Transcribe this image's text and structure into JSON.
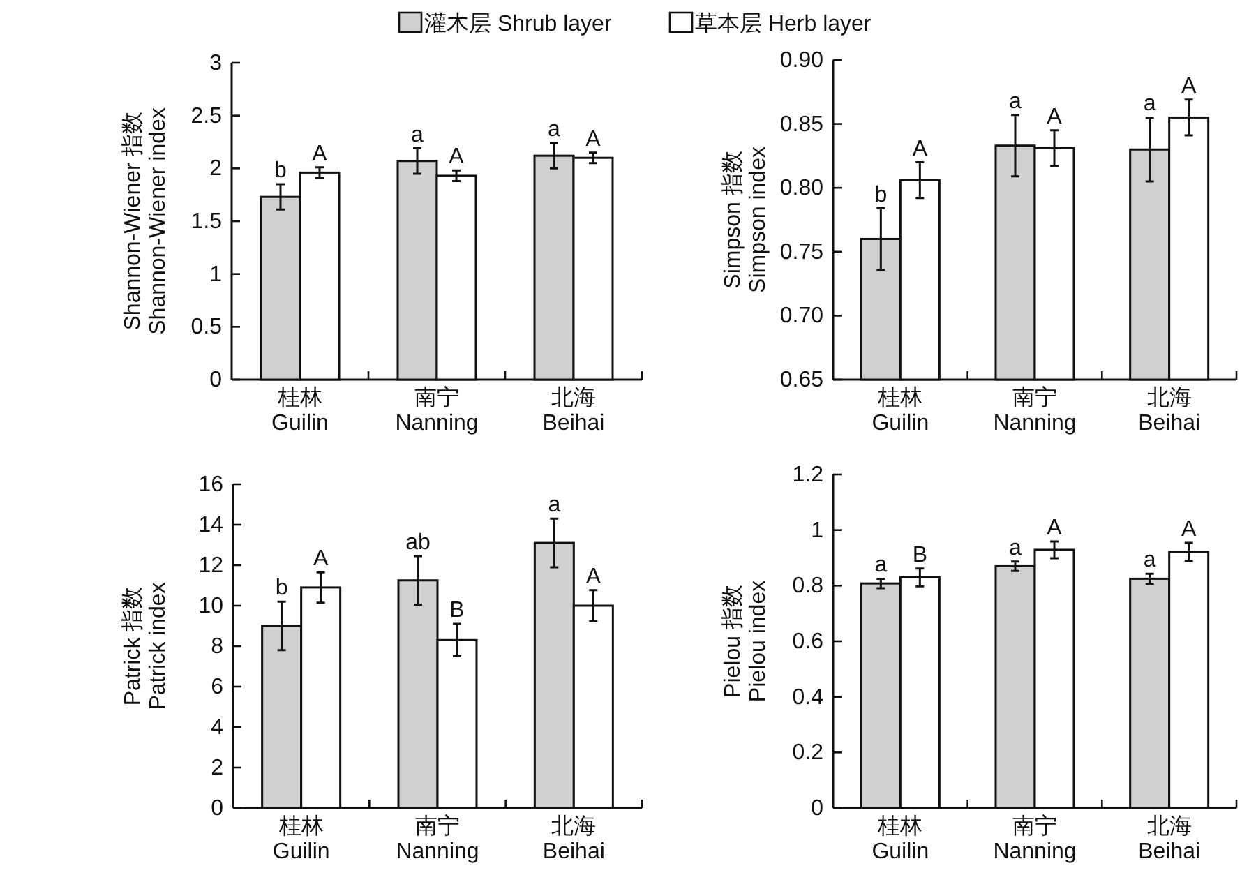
{
  "chart_data": [
    {
      "type": "bar",
      "ylabel": "Shannon-Wiener 指数\nShannon-Wiener index",
      "categories": [
        "桂林\nGuilin",
        "南宁\nNanning",
        "北海\nBeihai"
      ],
      "legend": "top",
      "ylim": [
        0,
        3
      ],
      "yticks": [
        0,
        0.5,
        1,
        1.5,
        2,
        2.5,
        3
      ],
      "series": [
        {
          "name": "灌木层 Shrub layer",
          "color": "#d0d0d0",
          "values": [
            1.73,
            2.07,
            2.12
          ],
          "errors": [
            0.12,
            0.12,
            0.12
          ],
          "value_labels": [
            "b",
            "a",
            "a"
          ]
        },
        {
          "name": "草本层 Herb layer",
          "color": "#ffffff",
          "values": [
            1.96,
            1.93,
            2.1
          ],
          "errors": [
            0.05,
            0.05,
            0.05
          ],
          "value_labels": [
            "A",
            "A",
            "A"
          ]
        }
      ]
    },
    {
      "type": "bar",
      "ylabel": "Simpson 指数\nSimpson index",
      "categories": [
        "桂林\nGuilin",
        "南宁\nNanning",
        "北海\nBeihai"
      ],
      "ylim": [
        0.65,
        0.9
      ],
      "yticks": [
        0.65,
        {
          "value": 0.7,
          "label": "0.70"
        },
        0.75,
        {
          "value": 0.8,
          "label": "0.80"
        },
        0.85,
        {
          "value": 0.9,
          "label": "0.90"
        }
      ],
      "series": [
        {
          "color": "#d0d0d0",
          "values": [
            0.76,
            0.833,
            0.83
          ],
          "errors": [
            0.024,
            0.024,
            0.025
          ],
          "value_labels": [
            "b",
            "a",
            "a"
          ]
        },
        {
          "color": "#ffffff",
          "values": [
            0.806,
            0.831,
            0.855
          ],
          "errors": [
            0.014,
            0.014,
            0.014
          ],
          "value_labels": [
            "A",
            "A",
            "A"
          ]
        }
      ]
    },
    {
      "type": "bar",
      "ylabel": "Patrick 指数\nPatrick index",
      "categories": [
        "桂林\nGuilin",
        "南宁\nNanning",
        "北海\nBeihai"
      ],
      "ylim": [
        0,
        16
      ],
      "yticks": [
        0,
        2,
        4,
        6,
        8,
        10,
        12,
        14,
        16
      ],
      "series": [
        {
          "color": "#d0d0d0",
          "values": [
            9.0,
            11.25,
            13.1
          ],
          "errors": [
            1.2,
            1.2,
            1.2
          ],
          "value_labels": [
            "b",
            "ab",
            "a"
          ]
        },
        {
          "color": "#ffffff",
          "values": [
            10.9,
            8.3,
            10.0
          ],
          "errors": [
            0.75,
            0.8,
            0.77
          ],
          "value_labels": [
            "A",
            "B",
            "A"
          ]
        }
      ]
    },
    {
      "type": "bar",
      "ylabel": "Pielou 指数\nPielou index",
      "categories": [
        "桂林\nGuilin",
        "南宁\nNanning",
        "北海\nBeihai"
      ],
      "ylim": [
        0,
        1.2
      ],
      "yticks": [
        0,
        0.2,
        0.4,
        0.6,
        0.8,
        1,
        1.2
      ],
      "series": [
        {
          "color": "#d0d0d0",
          "values": [
            0.808,
            0.87,
            0.825
          ],
          "errors": [
            0.017,
            0.017,
            0.018
          ],
          "value_labels": [
            "a",
            "a",
            "a"
          ]
        },
        {
          "color": "#ffffff",
          "values": [
            0.83,
            0.929,
            0.922
          ],
          "errors": [
            0.032,
            0.03,
            0.032
          ],
          "value_labels": [
            "B",
            "A",
            "A"
          ]
        }
      ]
    }
  ]
}
